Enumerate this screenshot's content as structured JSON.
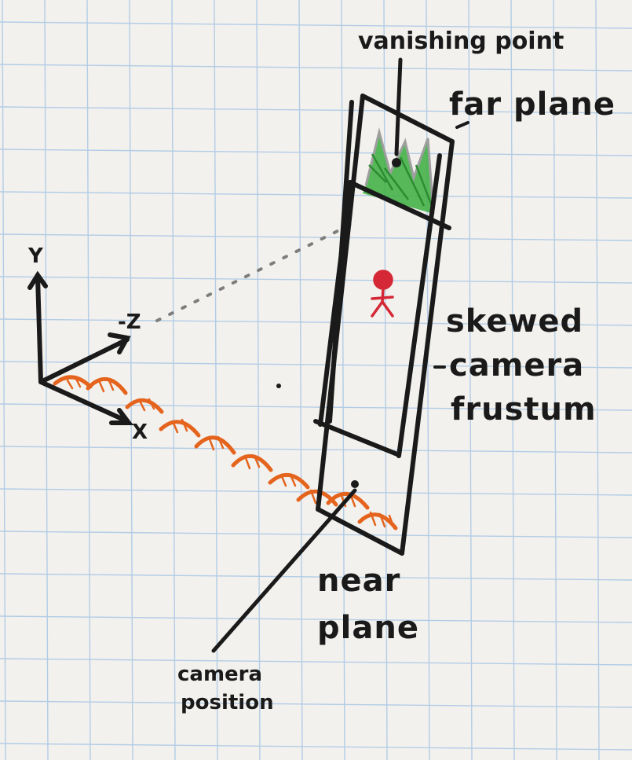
{
  "labels": {
    "vanishing_point": "vanishing point",
    "far_plane": "far plane",
    "skewed_line1": "skewed",
    "skewed_line2": "camera",
    "skewed_line3": "frustum",
    "near_line1": "near",
    "near_line2": "plane",
    "camera_line1": "camera",
    "camera_line2": "position"
  },
  "axes": {
    "y": "Y",
    "neg_z": "-Z",
    "x": "X"
  },
  "colors": {
    "paper": "#f2f1ee",
    "grid": "#a9c6e4",
    "ink": "#1a1a1a",
    "green": "#3cae3f",
    "orange": "#e5641d",
    "red": "#d42836",
    "dotted": "#7d7d7d"
  }
}
